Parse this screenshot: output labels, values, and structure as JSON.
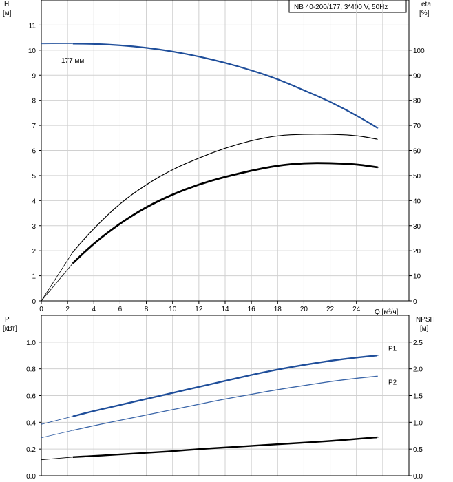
{
  "chart_data": [
    {
      "type": "line",
      "title": "NB 40-200/177, 3*400 V, 50Hz",
      "annotation": "177 мм",
      "y_left_label": [
        "H",
        "[м]"
      ],
      "y_right_label": [
        "eta",
        "[%]"
      ],
      "x_axis_label": "Q [м³/ч]",
      "x_ticks": [
        "0",
        "2",
        "4",
        "6",
        "8",
        "10",
        "12",
        "14",
        "16",
        "18",
        "20",
        "22",
        "24"
      ],
      "y_left_ticks": [
        "0",
        "1",
        "2",
        "3",
        "4",
        "5",
        "6",
        "7",
        "8",
        "9",
        "10",
        "11"
      ],
      "y_right_ticks": [
        "0",
        "10",
        "20",
        "30",
        "40",
        "50",
        "60",
        "70",
        "80",
        "90",
        "100"
      ],
      "xlim": [
        0,
        28
      ],
      "ylim_left": [
        0,
        12
      ],
      "ylim_right": [
        0,
        120
      ],
      "grid": true,
      "series": [
        {
          "axis": "left",
          "color": "#1f4e9a",
          "x": [
            0,
            2.4,
            4,
            6,
            8,
            10,
            12,
            14,
            16,
            18,
            20,
            22,
            24,
            25.6
          ],
          "y": [
            10.25,
            10.26,
            10.25,
            10.2,
            10.1,
            9.95,
            9.75,
            9.5,
            9.2,
            8.85,
            8.4,
            7.95,
            7.4,
            6.9
          ]
        },
        {
          "axis": "right",
          "color": "#000000",
          "x": [
            0,
            2.4,
            4,
            6,
            8,
            10,
            12,
            14,
            16,
            18,
            20,
            22,
            24,
            25.6
          ],
          "y": [
            0,
            19.5,
            29,
            39,
            46.5,
            52.5,
            57,
            61,
            64,
            66,
            66.5,
            66.5,
            66,
            64.5
          ]
        },
        {
          "axis": "right",
          "color": "#000000",
          "x": [
            0,
            2.4,
            4,
            6,
            8,
            10,
            12,
            14,
            16,
            18,
            20,
            22,
            24,
            25.6
          ],
          "y": [
            0,
            15,
            23,
            31,
            37.5,
            42.5,
            46.5,
            49.5,
            52,
            54,
            55,
            55,
            54.5,
            53.3
          ]
        }
      ]
    },
    {
      "type": "line",
      "y_left_label": [
        "P",
        "[кВт]"
      ],
      "y_right_label": [
        "NPSH",
        "[м]"
      ],
      "y_left_ticks": [
        "0.0",
        "0.2",
        "0.4",
        "0.6",
        "0.8",
        "1.0"
      ],
      "y_right_ticks": [
        "0.0",
        "0.5",
        "1.0",
        "1.5",
        "2.0",
        "2.5"
      ],
      "xlim": [
        0,
        28
      ],
      "ylim_left": [
        0,
        1.2
      ],
      "ylim_right": [
        0,
        3
      ],
      "grid": true,
      "series": [
        {
          "name": "P1",
          "axis": "left",
          "color": "#1f4e9a",
          "x": [
            0,
            2.4,
            4,
            6,
            8,
            10,
            12,
            14,
            16,
            18,
            20,
            22,
            24,
            25.6
          ],
          "y": [
            0.385,
            0.445,
            0.485,
            0.53,
            0.575,
            0.62,
            0.665,
            0.71,
            0.755,
            0.795,
            0.83,
            0.86,
            0.885,
            0.9
          ]
        },
        {
          "name": "P2",
          "axis": "left",
          "color": "#3a65a8",
          "x": [
            0,
            2.4,
            4,
            6,
            8,
            10,
            12,
            14,
            16,
            18,
            20,
            22,
            24,
            25.6
          ],
          "y": [
            0.285,
            0.34,
            0.375,
            0.415,
            0.455,
            0.495,
            0.535,
            0.575,
            0.61,
            0.645,
            0.675,
            0.705,
            0.73,
            0.745
          ]
        },
        {
          "axis": "right",
          "color": "#000000",
          "x": [
            0,
            2.4,
            4,
            6,
            8,
            10,
            12,
            14,
            16,
            18,
            20,
            22,
            24,
            25.6
          ],
          "y": [
            0.3,
            0.35,
            0.37,
            0.4,
            0.43,
            0.46,
            0.5,
            0.53,
            0.56,
            0.59,
            0.62,
            0.65,
            0.69,
            0.72
          ]
        }
      ]
    }
  ]
}
